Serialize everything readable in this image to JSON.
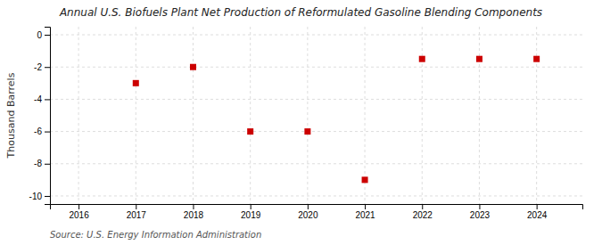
{
  "chart_data": {
    "type": "scatter",
    "title": "Annual U.S. Biofuels Plant Net Production of Reformulated Gasoline Blending Components",
    "ylabel": "Thousand Barrels",
    "annotations": [
      "Source: U.S. Energy Information Administration"
    ],
    "x": [
      2016,
      2017,
      2018,
      2019,
      2020,
      2021,
      2022,
      2023,
      2024
    ],
    "values": [
      null,
      -3.0,
      -2.0,
      -6.0,
      -6.0,
      -9.0,
      -1.5,
      -1.5,
      -1.5
    ],
    "color": "#cc0000",
    "marker": "square",
    "grid": true,
    "xlim": [
      2015.5,
      2024.8
    ],
    "ylim": [
      -10.5,
      0.5
    ],
    "xticks": [
      2016,
      2017,
      2018,
      2019,
      2020,
      2021,
      2022,
      2023,
      2024
    ],
    "yticks": [
      0,
      -2,
      -4,
      -6,
      -8,
      -10
    ]
  }
}
